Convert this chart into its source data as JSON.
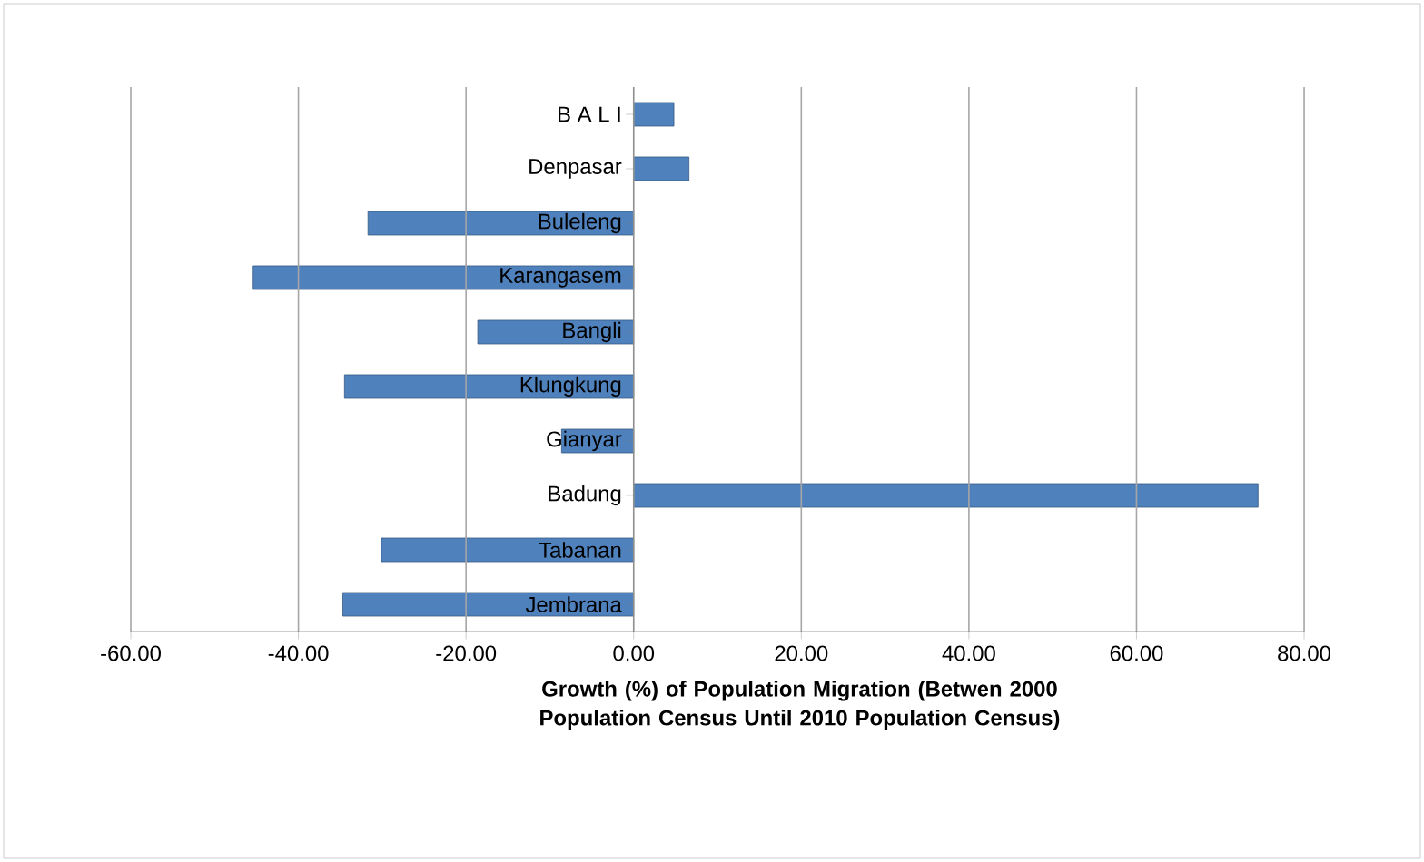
{
  "chart_data": {
    "type": "bar",
    "orientation": "horizontal",
    "xlabel": "Growth (%) of Population Migration (Betwen 2000 Population Census Until 2010 Population Census)",
    "categories": [
      "B A L I",
      "Denpasar",
      "Buleleng",
      "Karangasem",
      "Bangli",
      "Klungkung",
      "Gianyar",
      "Badung",
      "Tabanan",
      "Jembrana"
    ],
    "values": [
      4.8,
      6.6,
      -31.7,
      -45.4,
      -18.6,
      -34.5,
      -8.6,
      74.5,
      -30.1,
      -34.7
    ],
    "color": "#4f81bd",
    "xlim": [
      -60,
      80
    ],
    "xticks": [
      {
        "value": -60,
        "label": "-60.00"
      },
      {
        "value": -40,
        "label": "-40.00"
      },
      {
        "value": -20,
        "label": "-20.00"
      },
      {
        "value": 0,
        "label": "0.00"
      },
      {
        "value": 20,
        "label": "20.00"
      },
      {
        "value": 40,
        "label": "40.00"
      },
      {
        "value": 60,
        "label": "60.00"
      },
      {
        "value": 80,
        "label": "80.00"
      }
    ],
    "grid": "x"
  }
}
